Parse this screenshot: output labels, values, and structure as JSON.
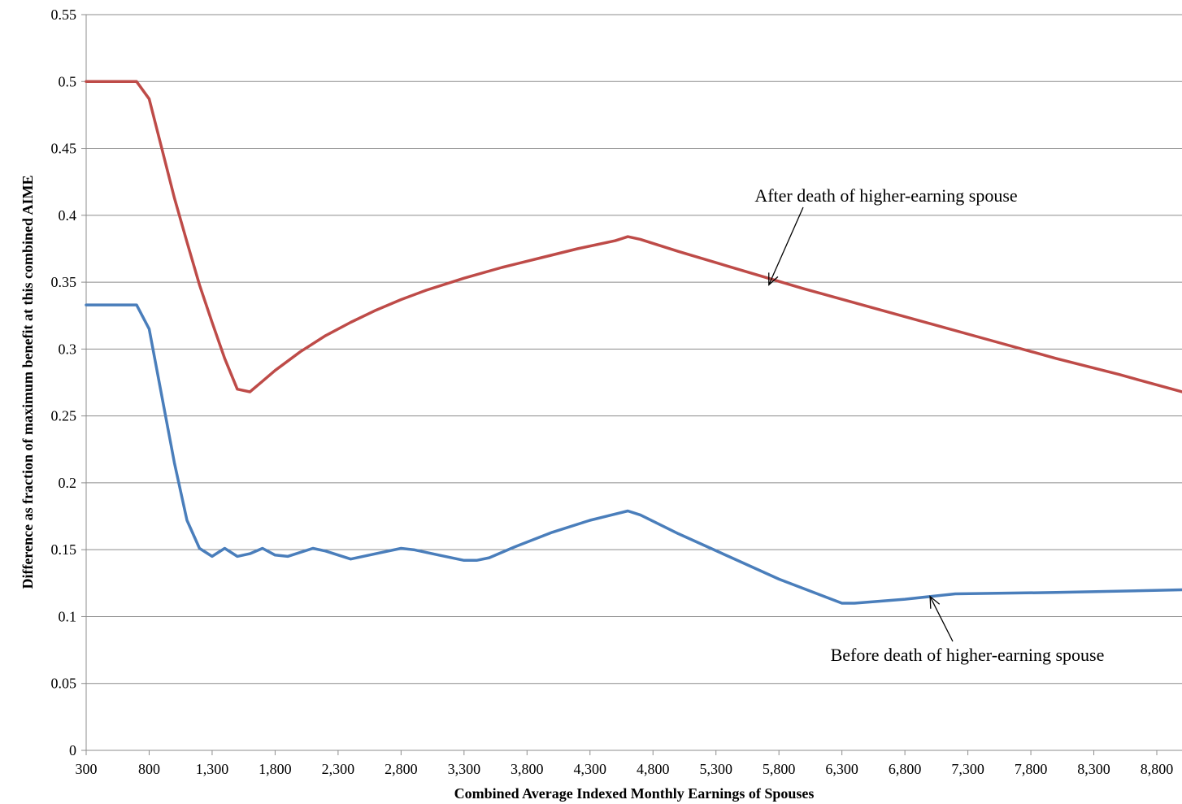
{
  "chart_data": {
    "type": "line",
    "xlabel": "Combined Average Indexed Monthly Earnings of Spouses",
    "ylabel": "Difference as fraction of maximum benefit at this combined AIME",
    "xlim": [
      300,
      9000
    ],
    "ylim": [
      0,
      0.55
    ],
    "x_ticks": [
      "300",
      "800",
      "1,300",
      "1,800",
      "2,300",
      "2,800",
      "3,300",
      "3,800",
      "4,300",
      "4,800",
      "5,300",
      "5,800",
      "6,300",
      "6,800",
      "7,300",
      "7,800",
      "8,300",
      "8,800"
    ],
    "y_ticks": [
      "0",
      "0.05",
      "0.1",
      "0.15",
      "0.2",
      "0.25",
      "0.3",
      "0.35",
      "0.4",
      "0.45",
      "0.5",
      "0.55"
    ],
    "grid": "horizontal",
    "series": [
      {
        "name": "After death of higher-earning spouse",
        "color": "#be4b48",
        "x": [
          300,
          400,
          500,
          600,
          700,
          800,
          900,
          1000,
          1100,
          1200,
          1300,
          1400,
          1500,
          1600,
          1700,
          1800,
          1900,
          2000,
          2200,
          2400,
          2600,
          2800,
          3000,
          3300,
          3600,
          3900,
          4200,
          4500,
          4600,
          4700,
          5000,
          5500,
          6000,
          6500,
          7000,
          7500,
          8000,
          8500,
          9000
        ],
        "values": [
          0.5,
          0.5,
          0.5,
          0.5,
          0.5,
          0.487,
          0.45,
          0.413,
          0.38,
          0.348,
          0.32,
          0.293,
          0.27,
          0.268,
          0.276,
          0.284,
          0.291,
          0.298,
          0.31,
          0.32,
          0.329,
          0.337,
          0.344,
          0.353,
          0.361,
          0.368,
          0.375,
          0.381,
          0.384,
          0.382,
          0.373,
          0.359,
          0.345,
          0.332,
          0.319,
          0.306,
          0.293,
          0.281,
          0.268
        ]
      },
      {
        "name": "Before death of higher-earning spouse",
        "color": "#4a7ebb",
        "x": [
          300,
          400,
          500,
          600,
          700,
          800,
          900,
          1000,
          1100,
          1200,
          1300,
          1400,
          1500,
          1600,
          1700,
          1800,
          1900,
          2100,
          2200,
          2400,
          2600,
          2800,
          2900,
          3100,
          3300,
          3400,
          3500,
          3700,
          4000,
          4300,
          4600,
          4700,
          5000,
          5400,
          5800,
          6300,
          6400,
          6800,
          7200,
          8000,
          9000
        ],
        "values": [
          0.333,
          0.333,
          0.333,
          0.333,
          0.333,
          0.315,
          0.265,
          0.215,
          0.172,
          0.151,
          0.145,
          0.151,
          0.145,
          0.147,
          0.151,
          0.146,
          0.145,
          0.151,
          0.149,
          0.143,
          0.147,
          0.151,
          0.15,
          0.146,
          0.142,
          0.142,
          0.144,
          0.152,
          0.163,
          0.172,
          0.179,
          0.176,
          0.162,
          0.145,
          0.128,
          0.11,
          0.11,
          0.113,
          0.117,
          0.118,
          0.12
        ]
      }
    ],
    "annotations": [
      {
        "id": "after",
        "text": "After death of higher-earning spouse",
        "target_x": 5720,
        "target_y": 0.348
      },
      {
        "id": "before",
        "text": "Before death of higher-earning spouse",
        "target_x": 7000,
        "target_y": 0.115
      }
    ]
  }
}
